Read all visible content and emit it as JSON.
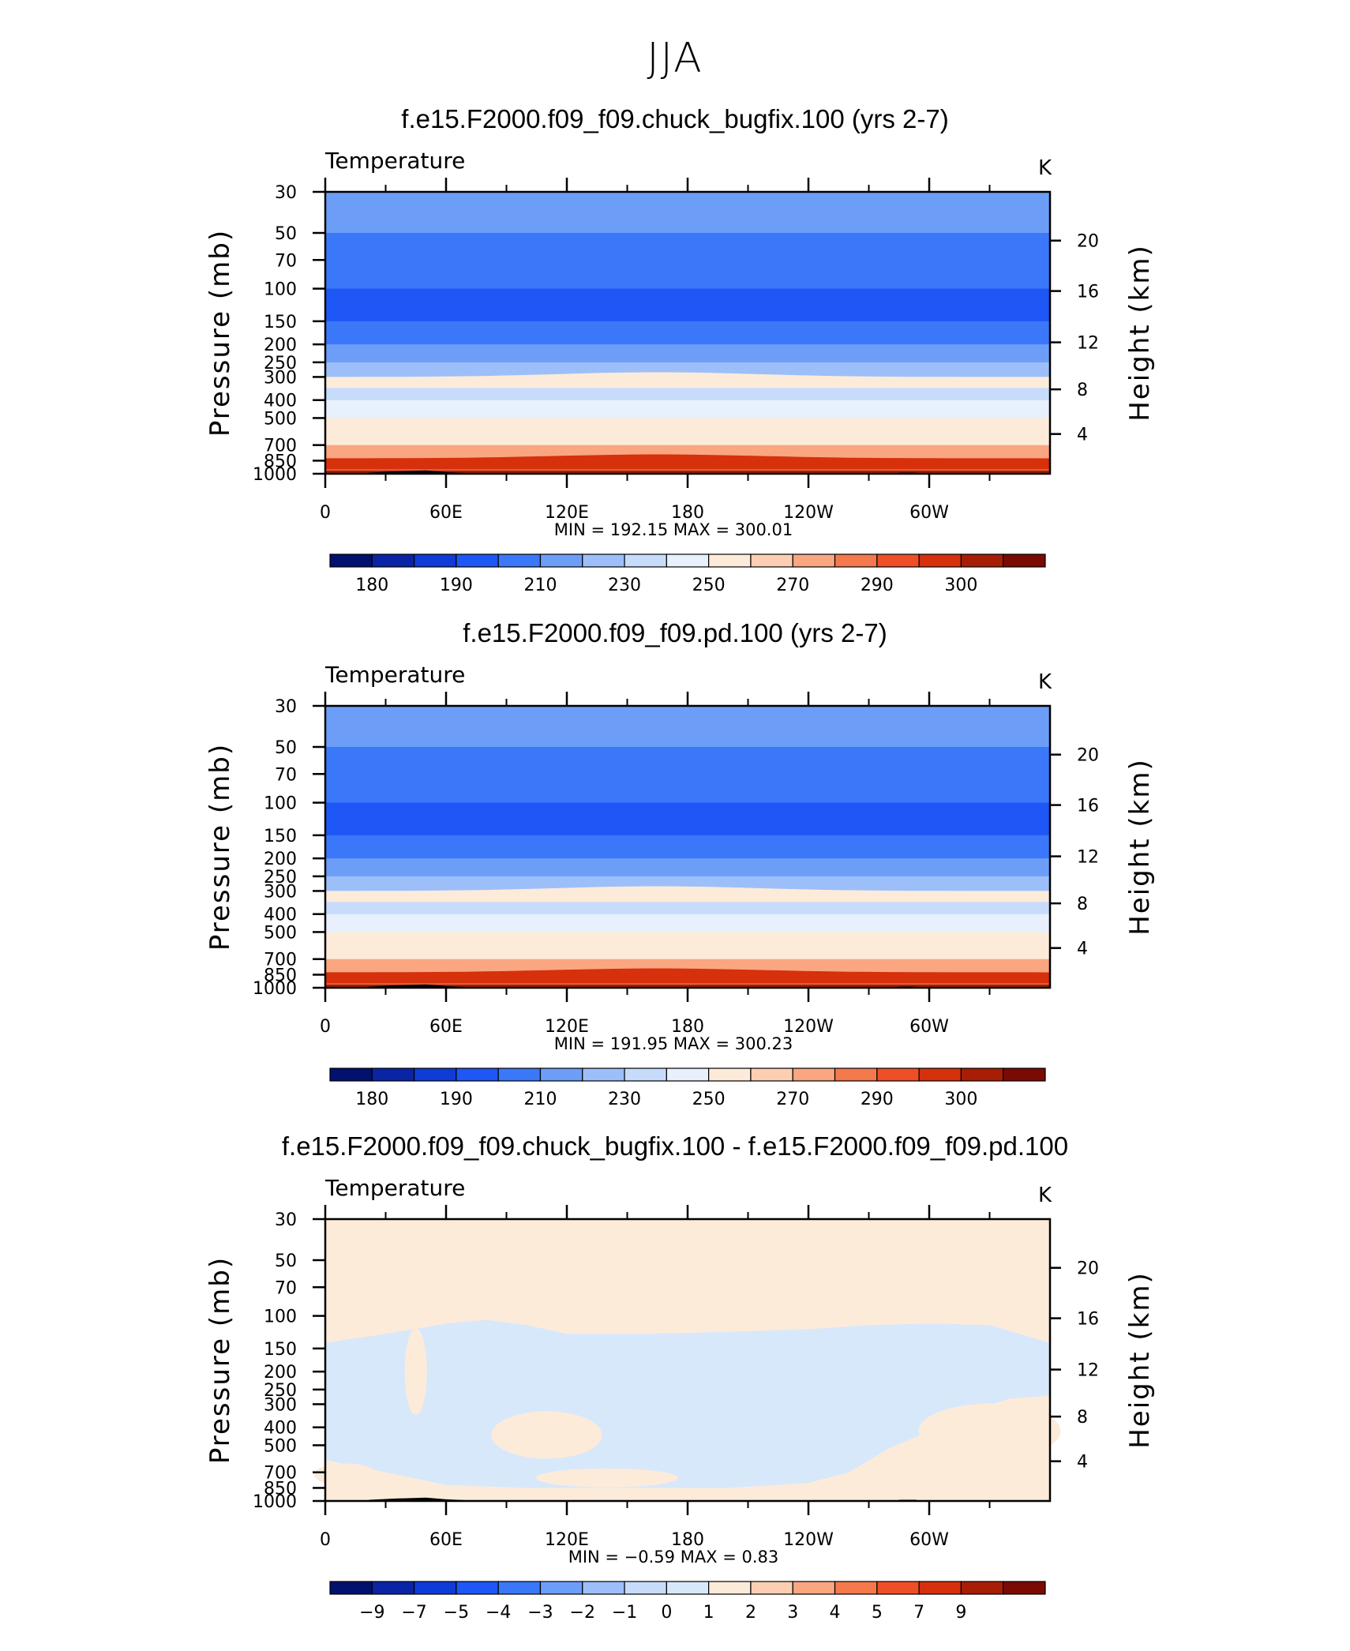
{
  "figure": {
    "title": "JJA",
    "colors": {
      "abs_palette": [
        "#02106e",
        "#0a24a6",
        "#0f3bd8",
        "#1e57f5",
        "#3b77f9",
        "#6c9ef8",
        "#9dbff9",
        "#c7dcfb",
        "#e7f0fc",
        "#fdebda",
        "#fccfb3",
        "#f9a681",
        "#f4794c",
        "#ef4f26",
        "#d6300c",
        "#a81d05",
        "#7a0a02"
      ],
      "diff_palette": [
        "#02106e",
        "#0a24a6",
        "#0f3bd8",
        "#1e57f5",
        "#3b77f9",
        "#6c9ef8",
        "#9dbff9",
        "#c7dcfb",
        "#d8e8fb",
        "#fdebda",
        "#fccfb3",
        "#f9a681",
        "#f4794c",
        "#ef4f26",
        "#d6300c",
        "#a81d05",
        "#7a0a02"
      ],
      "terrain": "#000000"
    }
  },
  "chart_data": [
    {
      "type": "heatmap",
      "title": "f.e15.F2000.f09_f09.chuck_bugfix.100 (yrs 2-7)",
      "variable_label": "Temperature",
      "units_label": "K",
      "ylabel": "Pressure (mb)",
      "y2label": "Height (km)",
      "x_ticks": [
        "0",
        "60E",
        "120E",
        "180",
        "120W",
        "60W"
      ],
      "y_ticks": [
        "30",
        "50",
        "70",
        "100",
        "150",
        "200",
        "250",
        "300",
        "400",
        "500",
        "700",
        "850",
        "1000"
      ],
      "y2_ticks": [
        "20",
        "16",
        "12",
        "8",
        "4"
      ],
      "stats_text": "MIN  =  192.15   MAX  =  300.01",
      "min": 192.15,
      "max": 300.01,
      "colorbar_labels": [
        "180",
        "190",
        "210",
        "230",
        "250",
        "270",
        "290",
        "300"
      ],
      "levels": [
        [
          30,
          215
        ],
        [
          40,
          212
        ],
        [
          50,
          207
        ],
        [
          70,
          200
        ],
        [
          100,
          195
        ],
        [
          150,
          205
        ],
        [
          200,
          212
        ],
        [
          250,
          220
        ],
        [
          300,
          232
        ],
        [
          400,
          248
        ],
        [
          500,
          258
        ],
        [
          700,
          275
        ],
        [
          850,
          285
        ],
        [
          1000,
          295
        ]
      ]
    },
    {
      "type": "heatmap",
      "title": "f.e15.F2000.f09_f09.pd.100 (yrs 2-7)",
      "variable_label": "Temperature",
      "units_label": "K",
      "ylabel": "Pressure (mb)",
      "y2label": "Height (km)",
      "x_ticks": [
        "0",
        "60E",
        "120E",
        "180",
        "120W",
        "60W"
      ],
      "y_ticks": [
        "30",
        "50",
        "70",
        "100",
        "150",
        "200",
        "250",
        "300",
        "400",
        "500",
        "700",
        "850",
        "1000"
      ],
      "y2_ticks": [
        "20",
        "16",
        "12",
        "8",
        "4"
      ],
      "stats_text": "MIN  =  191.95   MAX  =  300.23",
      "min": 191.95,
      "max": 300.23,
      "colorbar_labels": [
        "180",
        "190",
        "210",
        "230",
        "250",
        "270",
        "290",
        "300"
      ],
      "levels": [
        [
          30,
          215
        ],
        [
          40,
          212
        ],
        [
          50,
          207
        ],
        [
          70,
          200
        ],
        [
          100,
          195
        ],
        [
          150,
          205
        ],
        [
          200,
          212
        ],
        [
          250,
          220
        ],
        [
          300,
          232
        ],
        [
          400,
          248
        ],
        [
          500,
          258
        ],
        [
          700,
          275
        ],
        [
          850,
          285
        ],
        [
          1000,
          295
        ]
      ]
    },
    {
      "type": "heatmap",
      "title": "f.e15.F2000.f09_f09.chuck_bugfix.100 - f.e15.F2000.f09_f09.pd.100",
      "variable_label": "Temperature",
      "units_label": "K",
      "ylabel": "Pressure (mb)",
      "y2label": "Height (km)",
      "x_ticks": [
        "0",
        "60E",
        "120E",
        "180",
        "120W",
        "60W"
      ],
      "y_ticks": [
        "30",
        "50",
        "70",
        "100",
        "150",
        "200",
        "250",
        "300",
        "400",
        "500",
        "700",
        "850",
        "1000"
      ],
      "y2_ticks": [
        "20",
        "16",
        "12",
        "8",
        "4"
      ],
      "stats_text": "MIN  =    −0.59   MAX  =     0.83",
      "min": -0.59,
      "max": 0.83,
      "colorbar_labels": [
        "−9",
        "−7",
        "−5",
        "−4",
        "−3",
        "−2",
        "−1",
        "0",
        "1",
        "2",
        "3",
        "4",
        "5",
        "7",
        "9"
      ]
    }
  ]
}
